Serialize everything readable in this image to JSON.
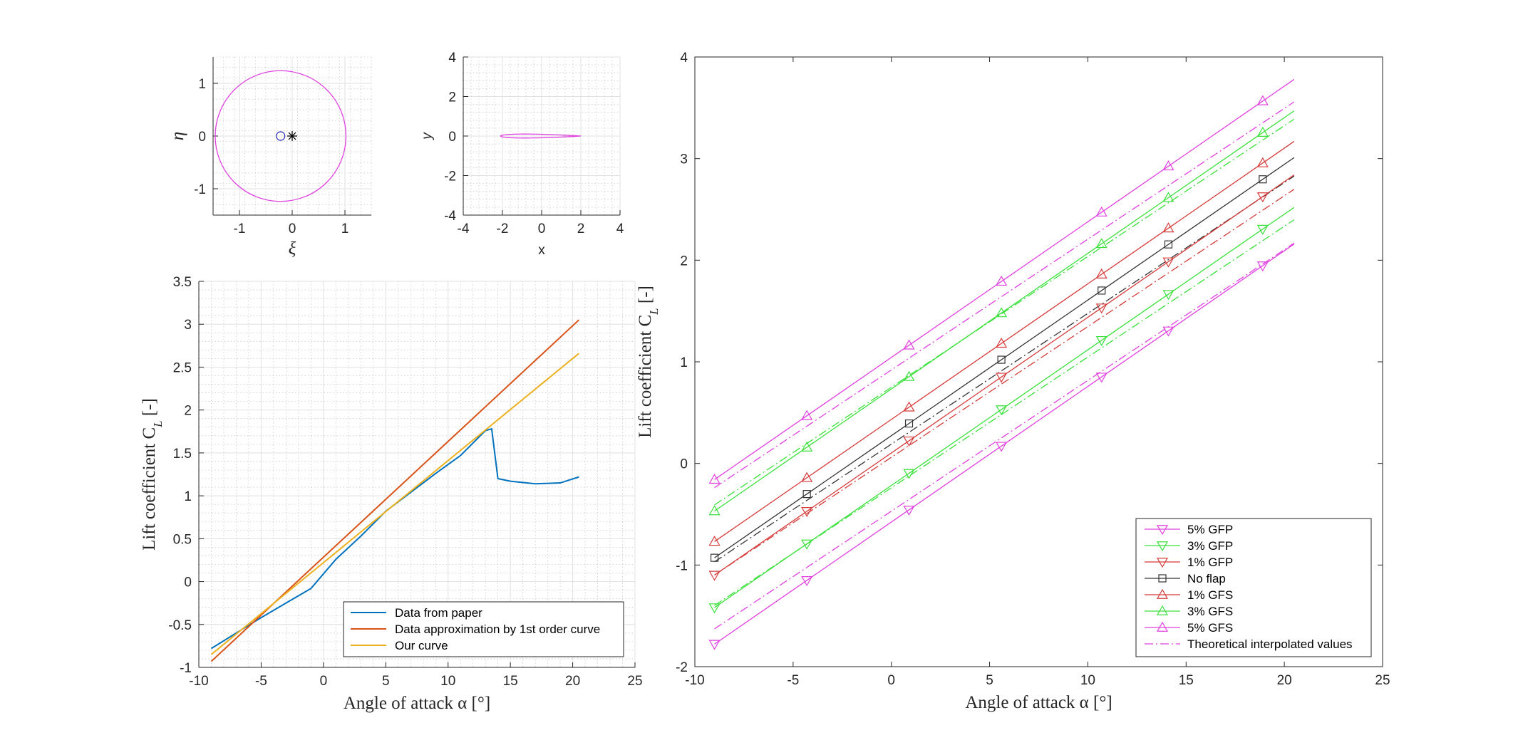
{
  "chart_data": [
    {
      "id": "circle-plane",
      "type": "line",
      "xlabel": "ξ",
      "ylabel": "η",
      "xlim": [
        -1.5,
        1.5
      ],
      "ylim": [
        -1.5,
        1.5
      ],
      "xticks": [
        -1,
        0,
        1
      ],
      "yticks": [
        -1,
        0,
        1
      ],
      "grid": true,
      "circle": {
        "center": [
          -0.22,
          0
        ],
        "radius": 1.24,
        "color": "#e040e0"
      },
      "markers": [
        {
          "type": "circle",
          "x": -0.22,
          "y": 0,
          "color": "#2020b0"
        },
        {
          "type": "star",
          "x": 0,
          "y": 0,
          "color": "#000000"
        }
      ]
    },
    {
      "id": "airfoil-plane",
      "type": "line",
      "xlabel": "x",
      "ylabel": "y",
      "xlim": [
        -4,
        4
      ],
      "ylim": [
        -4,
        4
      ],
      "xticks": [
        -4,
        -2,
        0,
        2,
        4
      ],
      "yticks": [
        -4,
        -2,
        0,
        2,
        4
      ],
      "grid": true,
      "airfoil": {
        "leading_edge": -2.1,
        "trailing_edge": 2.0,
        "max_thickness": 0.52,
        "color": "#e040e0"
      }
    },
    {
      "id": "lift-comparison",
      "type": "line",
      "xlabel": "Angle of attack α [°]",
      "ylabel": "Lift coefficient C_L [-]",
      "xlim": [
        -10,
        25
      ],
      "ylim": [
        -1,
        3.5
      ],
      "xticks": [
        -10,
        -5,
        0,
        5,
        10,
        15,
        20,
        25
      ],
      "yticks": [
        -1,
        -0.5,
        0,
        0.5,
        1,
        1.5,
        2,
        2.5,
        3,
        3.5
      ],
      "grid": true,
      "legend_position": "bottom-right",
      "series": [
        {
          "name": "Data from paper",
          "color": "#0072bd",
          "x": [
            -9,
            -7,
            -5,
            -3,
            -1,
            1,
            3,
            5,
            7,
            9,
            11,
            13,
            13.5,
            14,
            15,
            17,
            19,
            20.5
          ],
          "y": [
            -0.78,
            -0.6,
            -0.42,
            -0.25,
            -0.08,
            0.26,
            0.53,
            0.82,
            1.04,
            1.26,
            1.47,
            1.76,
            1.78,
            1.2,
            1.17,
            1.14,
            1.15,
            1.22
          ]
        },
        {
          "name": "Data approximation by 1st order curve",
          "color": "#d95319",
          "x": [
            -9,
            20.5
          ],
          "y": [
            -0.93,
            3.05
          ]
        },
        {
          "name": "Our curve",
          "color": "#edb120",
          "x": [
            -9,
            20.5
          ],
          "y": [
            -0.85,
            2.66
          ]
        }
      ]
    },
    {
      "id": "flap-comparison",
      "type": "line",
      "xlabel": "Angle of attack α [°]",
      "ylabel": "Lift coefficient C_L [-]",
      "xlim": [
        -10,
        25
      ],
      "ylim": [
        -2,
        4
      ],
      "xticks": [
        -10,
        -5,
        0,
        5,
        10,
        15,
        20,
        25
      ],
      "yticks": [
        -2,
        -1,
        0,
        1,
        2,
        3,
        4
      ],
      "grid": false,
      "legend_position": "bottom-right",
      "marker_x": [
        -9,
        -4.3,
        0.9,
        5.6,
        10.7,
        14.1,
        18.9
      ],
      "line_x_range": [
        -9,
        20.5
      ],
      "series": [
        {
          "name": "5% GFP",
          "color": "#e040e0",
          "marker": "triangle-down",
          "offset": -0.85
        },
        {
          "name": "3% GFP",
          "color": "#3ae03a",
          "marker": "triangle-down",
          "offset": -0.49
        },
        {
          "name": "1% GFP",
          "color": "#d63a3a",
          "marker": "triangle-down",
          "offset": -0.17
        },
        {
          "name": "No flap",
          "color": "#333333",
          "marker": "square",
          "offset": 0
        },
        {
          "name": "1% GFS",
          "color": "#d63a3a",
          "marker": "triangle-up",
          "offset": 0.16
        },
        {
          "name": "3% GFS",
          "color": "#3ae03a",
          "marker": "triangle-up",
          "offset": 0.46
        },
        {
          "name": "5% GFS",
          "color": "#e040e0",
          "marker": "triangle-up",
          "offset": 0.77
        }
      ],
      "base_line": {
        "slope": 0.1335,
        "intercept": 0.273
      },
      "theoretical": {
        "name": "Theoretical interpolated values",
        "slope": 0.1287,
        "lines": [
          {
            "color": "#e040e0",
            "intercept": -0.47
          },
          {
            "color": "#3ae03a",
            "intercept": -0.24
          },
          {
            "color": "#d63a3a",
            "intercept": 0.06
          },
          {
            "color": "#333333",
            "intercept": 0.19
          },
          {
            "color": "#3ae03a",
            "intercept": 0.75
          },
          {
            "color": "#e040e0",
            "intercept": 0.92
          }
        ]
      }
    }
  ]
}
